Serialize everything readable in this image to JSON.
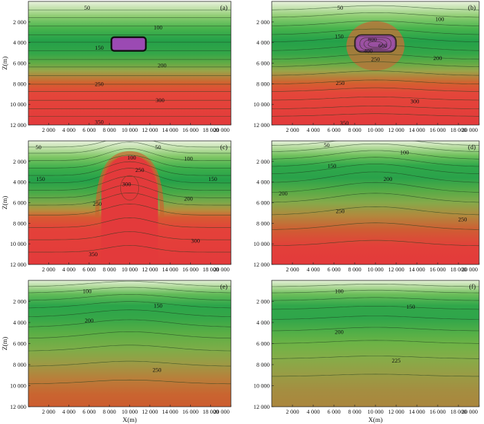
{
  "chart_data": [
    {
      "panel": "(a)",
      "type": "contour",
      "x_ticks": [
        "2 000",
        "4 000",
        "6 000",
        "8 000",
        "10 000",
        "12 000",
        "14 000",
        "16 000",
        "18 000",
        "20 000"
      ],
      "y_ticks": [
        "2 000",
        "4 000",
        "6 000",
        "8 000",
        "10 000",
        "12 000"
      ],
      "xlim": [
        0,
        20000
      ],
      "ylim": [
        0,
        12000
      ],
      "x_values": [
        2000,
        4000,
        6000,
        8000,
        10000,
        12000,
        14000,
        16000,
        18000,
        20000
      ],
      "y_values": [
        2000,
        4000,
        6000,
        8000,
        10000,
        12000
      ],
      "ylabel": "Z(m)",
      "xlabel": "",
      "contour_labels": [
        {
          "text": "50",
          "x": 5800,
          "z": 600
        },
        {
          "text": "100",
          "x": 12800,
          "z": 2500
        },
        {
          "text": "150",
          "x": 7000,
          "z": 4500
        },
        {
          "text": "200",
          "x": 13200,
          "z": 6200
        },
        {
          "text": "250",
          "x": 7000,
          "z": 8000
        },
        {
          "text": "300",
          "x": 13000,
          "z": 9600
        },
        {
          "text": "350",
          "x": 7000,
          "z": 11700
        }
      ]
    },
    {
      "panel": "(b)",
      "type": "contour",
      "x_ticks": [
        "2 000",
        "4 000",
        "6 000",
        "8 000",
        "10 000",
        "12 000",
        "14 000",
        "16 000",
        "18 000",
        "20 000"
      ],
      "y_ticks": [
        "2 000",
        "4 000",
        "6 000",
        "8 000",
        "10 000",
        "12 000"
      ],
      "xlim": [
        0,
        20000
      ],
      "ylim": [
        0,
        12000
      ],
      "x_values": [
        2000,
        4000,
        6000,
        8000,
        10000,
        12000,
        14000,
        16000,
        18000,
        20000
      ],
      "y_values": [
        2000,
        4000,
        6000,
        8000,
        10000,
        12000
      ],
      "ylabel": "",
      "xlabel": "",
      "contour_labels": [
        {
          "text": "50",
          "x": 6600,
          "z": 600
        },
        {
          "text": "100",
          "x": 16200,
          "z": 1700
        },
        {
          "text": "150",
          "x": 6500,
          "z": 3400
        },
        {
          "text": "200",
          "x": 16000,
          "z": 5500
        },
        {
          "text": "250",
          "x": 10000,
          "z": 5600
        },
        {
          "text": "250",
          "x": 6600,
          "z": 7900
        },
        {
          "text": "300",
          "x": 13800,
          "z": 9700
        },
        {
          "text": "350",
          "x": 7000,
          "z": 11800
        },
        {
          "text": "800",
          "x": 9700,
          "z": 3700
        },
        {
          "text": "400",
          "x": 9300,
          "z": 4800
        },
        {
          "text": "600",
          "x": 10700,
          "z": 4300
        }
      ]
    },
    {
      "panel": "(c)",
      "type": "contour",
      "x_ticks": [
        "2 000",
        "4 000",
        "6 000",
        "8 000",
        "10 000",
        "12 000",
        "14 000",
        "16 000",
        "18 000",
        "20 000"
      ],
      "y_ticks": [
        "2 000",
        "4 000",
        "6 000",
        "8 000",
        "10 000",
        "12 000"
      ],
      "xlim": [
        0,
        20000
      ],
      "ylim": [
        0,
        12000
      ],
      "x_values": [
        2000,
        4000,
        6000,
        8000,
        10000,
        12000,
        14000,
        16000,
        18000,
        20000
      ],
      "y_values": [
        2000,
        4000,
        6000,
        8000,
        10000,
        12000
      ],
      "ylabel": "Z(m)",
      "xlabel": "",
      "contour_labels": [
        {
          "text": "50",
          "x": 1000,
          "z": 600
        },
        {
          "text": "50",
          "x": 12800,
          "z": 600
        },
        {
          "text": "100",
          "x": 10200,
          "z": 1600
        },
        {
          "text": "100",
          "x": 15800,
          "z": 1700
        },
        {
          "text": "150",
          "x": 1200,
          "z": 3700
        },
        {
          "text": "150",
          "x": 18200,
          "z": 3700
        },
        {
          "text": "250",
          "x": 11000,
          "z": 2800
        },
        {
          "text": "300",
          "x": 9700,
          "z": 4200
        },
        {
          "text": "200",
          "x": 15800,
          "z": 5600
        },
        {
          "text": "250",
          "x": 6800,
          "z": 6100
        },
        {
          "text": "300",
          "x": 16500,
          "z": 9700
        },
        {
          "text": "350",
          "x": 6400,
          "z": 11000
        }
      ]
    },
    {
      "panel": "(d)",
      "type": "contour",
      "x_ticks": [
        "2 000",
        "4 000",
        "6 000",
        "8 000",
        "10 000",
        "12 000",
        "14 000",
        "16 000",
        "18 000",
        "20 000"
      ],
      "y_ticks": [
        "2 000",
        "4 000",
        "6 000",
        "8 000",
        "10 000",
        "12 000"
      ],
      "xlim": [
        0,
        20000
      ],
      "ylim": [
        0,
        12000
      ],
      "x_values": [
        2000,
        4000,
        6000,
        8000,
        10000,
        12000,
        14000,
        16000,
        18000,
        20000
      ],
      "y_values": [
        2000,
        4000,
        6000,
        8000,
        10000,
        12000
      ],
      "ylabel": "",
      "xlabel": "",
      "contour_labels": [
        {
          "text": "50",
          "x": 5300,
          "z": 400
        },
        {
          "text": "100",
          "x": 12800,
          "z": 1100
        },
        {
          "text": "150",
          "x": 5800,
          "z": 2400
        },
        {
          "text": "200",
          "x": 11200,
          "z": 3700
        },
        {
          "text": "200",
          "x": 1100,
          "z": 5100
        },
        {
          "text": "250",
          "x": 6600,
          "z": 6800
        },
        {
          "text": "250",
          "x": 18400,
          "z": 7600
        }
      ]
    },
    {
      "panel": "(e)",
      "type": "contour",
      "x_ticks": [
        "2 000",
        "4 000",
        "6 000",
        "8 000",
        "10 000",
        "12 000",
        "14 000",
        "16 000",
        "18 000",
        "20 000"
      ],
      "y_ticks": [
        "2 000",
        "4 000",
        "6 000",
        "8 000",
        "10 000",
        "12 000"
      ],
      "xlim": [
        0,
        20000
      ],
      "ylim": [
        0,
        12000
      ],
      "x_values": [
        2000,
        4000,
        6000,
        8000,
        10000,
        12000,
        14000,
        16000,
        18000,
        20000
      ],
      "y_values": [
        2000,
        4000,
        6000,
        8000,
        10000,
        12000
      ],
      "ylabel": "Z(m)",
      "xlabel": "X(m)",
      "contour_labels": [
        {
          "text": "100",
          "x": 5800,
          "z": 1000
        },
        {
          "text": "150",
          "x": 12800,
          "z": 2400
        },
        {
          "text": "200",
          "x": 6000,
          "z": 3800
        },
        {
          "text": "250",
          "x": 12700,
          "z": 8500
        }
      ]
    },
    {
      "panel": "(f)",
      "type": "contour",
      "x_ticks": [
        "2 000",
        "4 000",
        "6 000",
        "8 000",
        "10 000",
        "12 000",
        "14 000",
        "16 000",
        "18 000",
        "20 000"
      ],
      "y_ticks": [
        "2 000",
        "4 000",
        "6 000",
        "8 000",
        "10 000",
        "12 000"
      ],
      "xlim": [
        0,
        20000
      ],
      "ylim": [
        0,
        12000
      ],
      "x_values": [
        2000,
        4000,
        6000,
        8000,
        10000,
        12000,
        14000,
        16000,
        18000,
        20000
      ],
      "y_values": [
        2000,
        4000,
        6000,
        8000,
        10000,
        12000
      ],
      "ylabel": "",
      "xlabel": "X(m)",
      "contour_labels": [
        {
          "text": "100",
          "x": 6500,
          "z": 1000
        },
        {
          "text": "150",
          "x": 13400,
          "z": 2500
        },
        {
          "text": "200",
          "x": 6500,
          "z": 4900
        },
        {
          "text": "225",
          "x": 12000,
          "z": 7600
        }
      ]
    }
  ],
  "colors": {
    "band_light": "#d7eac9",
    "band_green_mid": "#44b24a",
    "band_green_dark": "#1f9a45",
    "band_olive": "#8aa444",
    "band_orange": "#c9652f",
    "band_red": "#e5373a",
    "intrusion_purple": "#9b4ab3"
  }
}
